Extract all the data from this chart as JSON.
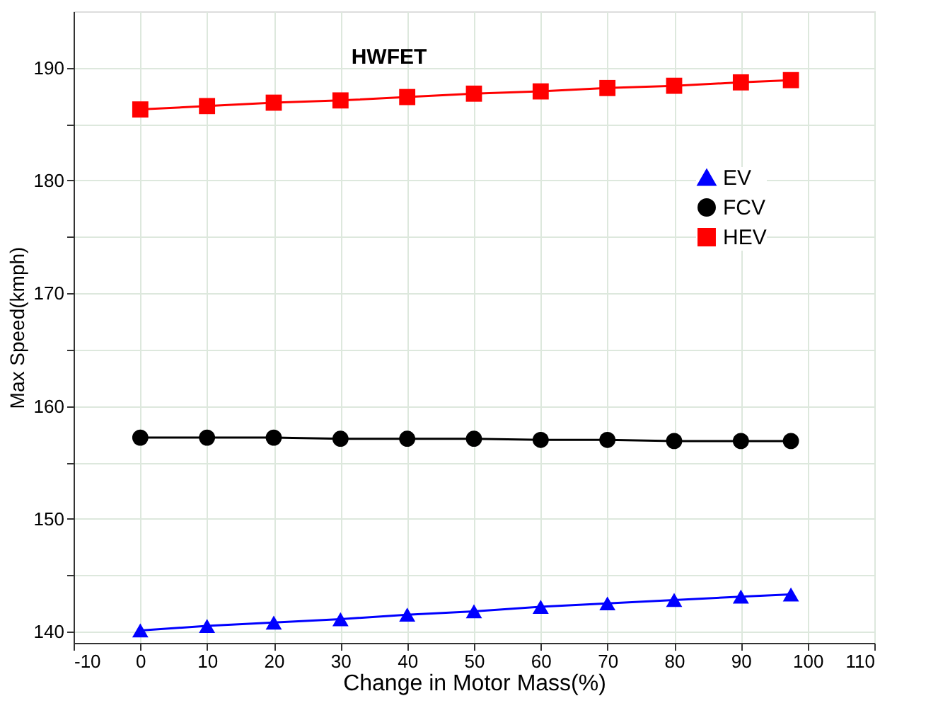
{
  "chart_data": {
    "type": "line",
    "title": "HWFET",
    "xlabel": "Change in Motor Mass(%)",
    "ylabel": "Max Speed(kmph)",
    "x": [
      0,
      10,
      20,
      30,
      40,
      50,
      60,
      70,
      80,
      90,
      97.5
    ],
    "series": [
      {
        "name": "EV",
        "color": "#0000ff",
        "marker": "triangle",
        "values": [
          140.1,
          140.5,
          140.8,
          141.1,
          141.5,
          141.8,
          142.2,
          142.5,
          142.8,
          143.1,
          143.3
        ]
      },
      {
        "name": "FCV",
        "color": "#000000",
        "marker": "circle",
        "values": [
          157.2,
          157.2,
          157.2,
          157.1,
          157.1,
          157.1,
          157.0,
          157.0,
          156.9,
          156.9,
          156.9
        ]
      },
      {
        "name": "HEV",
        "color": "#ff0000",
        "marker": "square",
        "values": [
          186.3,
          186.6,
          186.9,
          187.1,
          187.4,
          187.7,
          187.9,
          188.2,
          188.4,
          188.7,
          188.9
        ]
      }
    ],
    "xlim": [
      -10,
      110
    ],
    "xticks": [
      -10,
      0,
      10,
      20,
      30,
      40,
      50,
      60,
      70,
      80,
      90,
      100,
      110
    ],
    "ylim": [
      139,
      195
    ],
    "yticks": [
      140,
      {
        "value": 145,
        "label": null
      },
      150,
      {
        "value": 155,
        "label": null
      },
      160,
      {
        "value": 165,
        "label": null
      },
      170,
      {
        "value": 175,
        "label": null
      },
      180,
      {
        "value": 185,
        "label": null
      },
      190
    ],
    "grid": true,
    "legend": "top right",
    "line_style": "solid"
  }
}
